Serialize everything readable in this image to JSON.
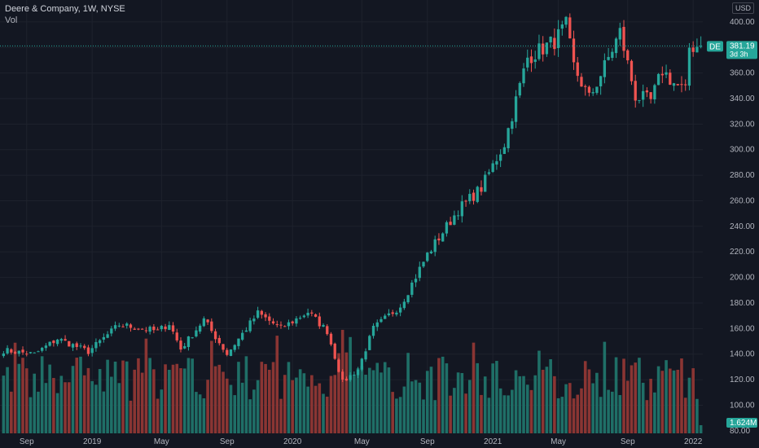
{
  "legend": {
    "title": "Deere & Company, 1W, NYSE",
    "volume_label": "Vol"
  },
  "currency": "USD",
  "price_tag": {
    "symbol": "DE",
    "price": "381.19",
    "countdown": "3d 3h"
  },
  "volume_tag": "1.624M",
  "colors": {
    "background": "#131722",
    "up": "#26a69a",
    "down": "#ef5350",
    "up_volume": "#1f6f67",
    "down_volume": "#8a3533",
    "grid": "#1e222d",
    "last_price_line": "#26a69a"
  },
  "chart_data": {
    "type": "candlestick",
    "y_ticks": [
      80,
      100,
      120,
      140,
      160,
      180,
      200,
      220,
      240,
      260,
      280,
      300,
      320,
      340,
      360,
      380,
      400
    ],
    "y_tick_labels": [
      "80.00",
      "100.00",
      "120.00",
      "140.00",
      "160.00",
      "180.00",
      "200.00",
      "220.00",
      "240.00",
      "260.00",
      "280.00",
      "300.00",
      "320.00",
      "340.00",
      "360.00",
      "380.00",
      "400.00"
    ],
    "y_range": [
      78,
      412
    ],
    "x_labels": [
      {
        "label": "Sep",
        "week": 6
      },
      {
        "label": "2019",
        "week": 23
      },
      {
        "label": "May",
        "week": 41
      },
      {
        "label": "Sep",
        "week": 58
      },
      {
        "label": "2020",
        "week": 75
      },
      {
        "label": "May",
        "week": 93
      },
      {
        "label": "Sep",
        "week": 110
      },
      {
        "label": "2021",
        "week": 127
      },
      {
        "label": "May",
        "week": 144
      },
      {
        "label": "Sep",
        "week": 162
      },
      {
        "label": "2022",
        "week": 179
      }
    ],
    "key_prices": [
      {
        "week": 0,
        "price": 143
      },
      {
        "week": 8,
        "price": 140
      },
      {
        "week": 14,
        "price": 152
      },
      {
        "week": 22,
        "price": 142
      },
      {
        "week": 30,
        "price": 163
      },
      {
        "week": 40,
        "price": 158
      },
      {
        "week": 43,
        "price": 164
      },
      {
        "week": 46,
        "price": 144
      },
      {
        "week": 52,
        "price": 167
      },
      {
        "week": 58,
        "price": 140
      },
      {
        "week": 66,
        "price": 172
      },
      {
        "week": 72,
        "price": 160
      },
      {
        "week": 79,
        "price": 173
      },
      {
        "week": 84,
        "price": 158
      },
      {
        "week": 88,
        "price": 118
      },
      {
        "week": 92,
        "price": 128
      },
      {
        "week": 96,
        "price": 160
      },
      {
        "week": 103,
        "price": 178
      },
      {
        "week": 110,
        "price": 218
      },
      {
        "week": 118,
        "price": 253
      },
      {
        "week": 124,
        "price": 270
      },
      {
        "week": 130,
        "price": 305
      },
      {
        "week": 136,
        "price": 372
      },
      {
        "week": 143,
        "price": 385
      },
      {
        "week": 146,
        "price": 397
      },
      {
        "week": 148,
        "price": 365
      },
      {
        "week": 152,
        "price": 340
      },
      {
        "week": 156,
        "price": 365
      },
      {
        "week": 160,
        "price": 392
      },
      {
        "week": 164,
        "price": 342
      },
      {
        "week": 168,
        "price": 338
      },
      {
        "week": 171,
        "price": 362
      },
      {
        "week": 174,
        "price": 352
      },
      {
        "week": 177,
        "price": 345
      },
      {
        "week": 178,
        "price": 380
      },
      {
        "week": 180,
        "price": 381.19
      }
    ],
    "last_price": 381.19
  }
}
